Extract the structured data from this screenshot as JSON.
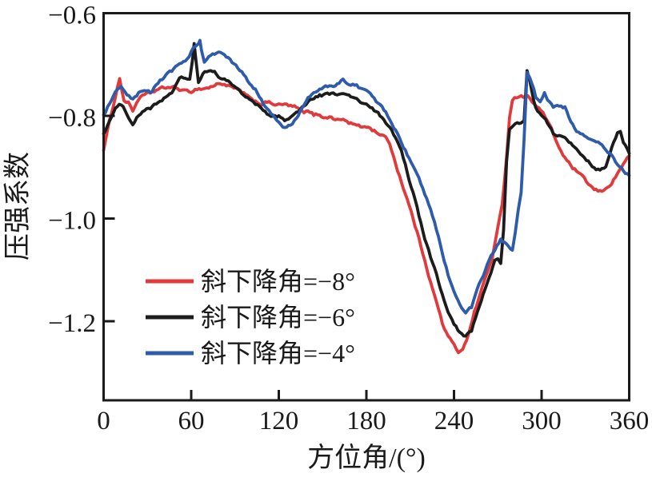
{
  "chart_data": {
    "type": "line",
    "title": "",
    "xlabel": "方位角/(°)",
    "ylabel": "压强系数",
    "xlim": [
      0,
      360
    ],
    "ylim": [
      -1.354,
      -0.6
    ],
    "grid": false,
    "legend_position": "inside-lower-left",
    "background_color": "#ffffff",
    "frame_color": "#1a1a1a",
    "noise_amplitude": 0.005,
    "x_ticks": [
      {
        "value": 0,
        "label": "0"
      },
      {
        "value": 60,
        "label": "60"
      },
      {
        "value": 120,
        "label": "120"
      },
      {
        "value": 180,
        "label": "180"
      },
      {
        "value": 240,
        "label": "240"
      },
      {
        "value": 300,
        "label": "300"
      },
      {
        "value": 360,
        "label": "360"
      }
    ],
    "y_ticks": [
      {
        "value": -0.6,
        "label": "−0.6"
      },
      {
        "value": -0.8,
        "label": "−0.8"
      },
      {
        "value": -1.0,
        "label": "−1.0"
      },
      {
        "value": -1.2,
        "label": "−1.2"
      }
    ],
    "series": [
      {
        "name": "斜下降角=−8°",
        "color": "#e03a3c",
        "x": [
          0,
          4,
          8,
          11,
          14,
          17,
          20,
          24,
          28,
          32,
          36,
          40,
          44,
          48,
          52,
          56,
          60,
          64,
          68,
          72,
          76,
          80,
          84,
          88,
          92,
          96,
          100,
          104,
          108,
          112,
          116,
          120,
          124,
          128,
          132,
          136,
          140,
          144,
          148,
          152,
          156,
          160,
          164,
          168,
          172,
          176,
          180,
          184,
          188,
          192,
          196,
          200,
          204,
          208,
          212,
          216,
          220,
          224,
          228,
          232,
          236,
          240,
          243,
          246,
          250,
          254,
          258,
          262,
          266,
          270,
          273,
          276,
          278,
          280,
          283,
          286,
          289,
          292,
          295,
          298,
          301,
          304,
          308,
          312,
          316,
          320,
          324,
          328,
          332,
          336,
          340,
          344,
          348,
          352,
          356,
          360
        ],
        "y": [
          -0.865,
          -0.812,
          -0.762,
          -0.727,
          -0.77,
          -0.775,
          -0.79,
          -0.766,
          -0.76,
          -0.756,
          -0.75,
          -0.747,
          -0.744,
          -0.745,
          -0.748,
          -0.753,
          -0.752,
          -0.747,
          -0.747,
          -0.745,
          -0.741,
          -0.736,
          -0.74,
          -0.745,
          -0.75,
          -0.756,
          -0.767,
          -0.771,
          -0.777,
          -0.774,
          -0.776,
          -0.779,
          -0.778,
          -0.781,
          -0.784,
          -0.793,
          -0.792,
          -0.798,
          -0.797,
          -0.804,
          -0.802,
          -0.808,
          -0.807,
          -0.813,
          -0.817,
          -0.822,
          -0.82,
          -0.827,
          -0.833,
          -0.84,
          -0.853,
          -0.893,
          -0.928,
          -0.963,
          -1.0,
          -1.04,
          -1.08,
          -1.124,
          -1.163,
          -1.204,
          -1.23,
          -1.247,
          -1.26,
          -1.252,
          -1.225,
          -1.182,
          -1.146,
          -1.112,
          -1.078,
          -1.02,
          -0.975,
          -0.88,
          -0.8,
          -0.768,
          -0.763,
          -0.76,
          -0.762,
          -0.765,
          -0.775,
          -0.785,
          -0.795,
          -0.81,
          -0.835,
          -0.862,
          -0.882,
          -0.898,
          -0.908,
          -0.92,
          -0.932,
          -0.944,
          -0.948,
          -0.943,
          -0.93,
          -0.913,
          -0.892,
          -0.878
        ]
      },
      {
        "name": "斜下降角=−6°",
        "color": "#1c1c1c",
        "x": [
          0,
          4,
          8,
          12,
          16,
          20,
          24,
          28,
          32,
          36,
          40,
          44,
          48,
          52,
          56,
          59,
          61,
          62,
          63,
          65,
          68,
          72,
          76,
          80,
          84,
          88,
          92,
          96,
          100,
          104,
          108,
          112,
          116,
          120,
          124,
          128,
          132,
          136,
          140,
          144,
          148,
          152,
          156,
          160,
          164,
          168,
          172,
          176,
          180,
          184,
          188,
          192,
          196,
          200,
          204,
          208,
          212,
          216,
          220,
          224,
          228,
          232,
          236,
          240,
          244,
          248,
          252,
          256,
          260,
          264,
          268,
          270,
          272,
          274,
          276,
          278,
          282,
          286,
          288,
          290,
          292,
          296,
          300,
          304,
          308,
          312,
          316,
          320,
          324,
          328,
          332,
          336,
          340,
          344,
          348,
          352,
          354,
          356,
          360
        ],
        "y": [
          -0.834,
          -0.81,
          -0.787,
          -0.778,
          -0.795,
          -0.814,
          -0.8,
          -0.788,
          -0.786,
          -0.778,
          -0.768,
          -0.761,
          -0.75,
          -0.728,
          -0.726,
          -0.73,
          -0.69,
          -0.658,
          -0.685,
          -0.735,
          -0.72,
          -0.712,
          -0.716,
          -0.727,
          -0.731,
          -0.739,
          -0.747,
          -0.758,
          -0.77,
          -0.776,
          -0.786,
          -0.797,
          -0.803,
          -0.801,
          -0.807,
          -0.805,
          -0.793,
          -0.783,
          -0.771,
          -0.766,
          -0.761,
          -0.759,
          -0.757,
          -0.757,
          -0.759,
          -0.761,
          -0.766,
          -0.773,
          -0.779,
          -0.787,
          -0.796,
          -0.806,
          -0.822,
          -0.845,
          -0.87,
          -0.91,
          -0.95,
          -0.995,
          -1.04,
          -1.075,
          -1.11,
          -1.146,
          -1.185,
          -1.209,
          -1.221,
          -1.23,
          -1.219,
          -1.185,
          -1.149,
          -1.118,
          -1.084,
          -1.079,
          -1.09,
          -1.02,
          -0.89,
          -0.826,
          -0.818,
          -0.814,
          -0.81,
          -0.715,
          -0.735,
          -0.785,
          -0.8,
          -0.815,
          -0.833,
          -0.84,
          -0.843,
          -0.855,
          -0.864,
          -0.877,
          -0.888,
          -0.9,
          -0.906,
          -0.9,
          -0.862,
          -0.834,
          -0.833,
          -0.852,
          -0.873
        ]
      },
      {
        "name": "斜下降角=−4°",
        "color": "#2f5caa",
        "x": [
          0,
          4,
          8,
          12,
          16,
          20,
          24,
          28,
          32,
          36,
          40,
          44,
          48,
          52,
          56,
          60,
          63,
          65,
          66,
          67,
          69,
          72,
          76,
          80,
          84,
          88,
          92,
          96,
          100,
          104,
          108,
          112,
          116,
          120,
          124,
          128,
          132,
          136,
          140,
          144,
          148,
          152,
          156,
          160,
          164,
          168,
          172,
          176,
          180,
          184,
          188,
          192,
          196,
          200,
          204,
          208,
          212,
          216,
          220,
          224,
          228,
          232,
          236,
          240,
          244,
          248,
          252,
          256,
          260,
          264,
          268,
          272,
          276,
          280,
          282,
          284,
          286,
          288,
          290,
          292,
          296,
          299,
          302,
          304,
          308,
          312,
          316,
          320,
          324,
          328,
          332,
          336,
          340,
          344,
          348,
          352,
          356,
          360
        ],
        "y": [
          -0.8,
          -0.776,
          -0.756,
          -0.746,
          -0.76,
          -0.77,
          -0.757,
          -0.752,
          -0.754,
          -0.74,
          -0.728,
          -0.719,
          -0.71,
          -0.7,
          -0.692,
          -0.675,
          -0.663,
          -0.658,
          -0.652,
          -0.672,
          -0.698,
          -0.684,
          -0.679,
          -0.677,
          -0.684,
          -0.696,
          -0.708,
          -0.72,
          -0.738,
          -0.75,
          -0.77,
          -0.787,
          -0.8,
          -0.814,
          -0.825,
          -0.818,
          -0.803,
          -0.784,
          -0.767,
          -0.755,
          -0.749,
          -0.744,
          -0.742,
          -0.739,
          -0.729,
          -0.74,
          -0.738,
          -0.746,
          -0.752,
          -0.762,
          -0.778,
          -0.788,
          -0.805,
          -0.828,
          -0.852,
          -0.876,
          -0.9,
          -0.924,
          -0.953,
          -0.98,
          -1.02,
          -1.065,
          -1.11,
          -1.14,
          -1.165,
          -1.182,
          -1.173,
          -1.14,
          -1.112,
          -1.082,
          -1.06,
          -1.042,
          -1.05,
          -1.062,
          -1.025,
          -0.985,
          -0.948,
          -0.845,
          -0.713,
          -0.725,
          -0.763,
          -0.77,
          -0.755,
          -0.77,
          -0.784,
          -0.779,
          -0.784,
          -0.81,
          -0.829,
          -0.837,
          -0.845,
          -0.85,
          -0.856,
          -0.864,
          -0.878,
          -0.895,
          -0.907,
          -0.916
        ]
      }
    ]
  }
}
